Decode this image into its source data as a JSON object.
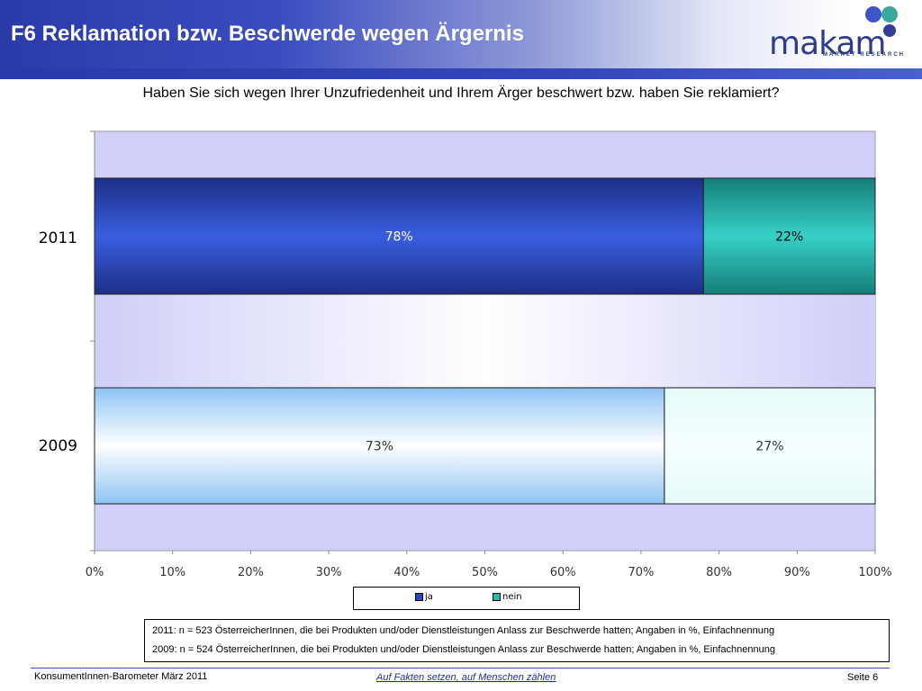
{
  "header": {
    "title": "F6 Reklamation bzw. Beschwerde wegen Ärgernis"
  },
  "logo": {
    "text": "makam",
    "subtitle": "MARKET RESEARCH"
  },
  "question": "Haben Sie sich wegen Ihrer Unzufriedenheit und Ihrem Ärger beschwert bzw. haben Sie reklamiert?",
  "colors": {
    "ja_2011": "#2b46c8",
    "nein_2011": "#24b8b0",
    "ja_2009": "#a8d0f4",
    "nein_2009": "#eefcfc",
    "plot_bg": "#d0d0fa"
  },
  "chart_data": {
    "type": "bar",
    "orientation": "horizontal",
    "stacked": true,
    "categories": [
      "2011",
      "2009"
    ],
    "series": [
      {
        "name": "ja",
        "values": [
          78,
          73
        ],
        "labels": [
          "78%",
          "73%"
        ]
      },
      {
        "name": "nein",
        "values": [
          22,
          27
        ],
        "labels": [
          "22%",
          "27%"
        ]
      }
    ],
    "xlim": [
      0,
      100
    ],
    "xticks": [
      "0%",
      "10%",
      "20%",
      "30%",
      "40%",
      "50%",
      "60%",
      "70%",
      "80%",
      "90%",
      "100%"
    ],
    "legend_position": "bottom"
  },
  "legend": [
    {
      "label": "ja"
    },
    {
      "label": "nein"
    }
  ],
  "notes": [
    "2011: n = 523 ÖsterreicherInnen, die bei Produkten und/oder Dienstleistungen Anlass zur Beschwerde hatten; Angaben in %, Einfachnennung",
    "2009: n = 524 ÖsterreicherInnen, die bei Produkten und/oder Dienstleistungen Anlass zur Beschwerde hatten; Angaben in %, Einfachnennung"
  ],
  "footer": {
    "left": "KonsumentInnen-Barometer März  2011",
    "middle": "Auf Fakten setzen, auf Menschen zählen",
    "right": "Seite 6"
  }
}
